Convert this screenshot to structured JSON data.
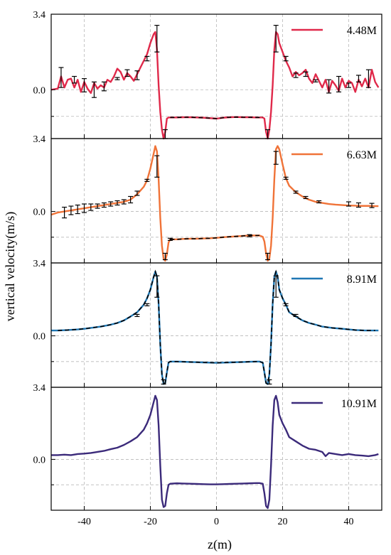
{
  "chart_data": {
    "type": "line",
    "xlabel": "z(m)",
    "ylabel": "vertical velocity(m/s)",
    "xlim": [
      -50,
      50
    ],
    "x_ticks": [
      -40,
      -20,
      0,
      20,
      40
    ],
    "x_tick_labels": [
      "-40",
      "-20",
      "0",
      "20",
      "40"
    ],
    "grid": true,
    "legend_position": "top-right",
    "panels": [
      {
        "series_name": "4.48M",
        "color": "#e0294a",
        "ylim": [
          -2.2,
          3.4
        ],
        "y_ticks": [
          0.0,
          3.4
        ],
        "y_tick_labels": [
          "0.0",
          "3.4"
        ],
        "has_errorbars": true,
        "x": [
          -50,
          -48,
          -47,
          -46,
          -45,
          -44,
          -43,
          -42,
          -41,
          -40,
          -39,
          -38,
          -37,
          -36,
          -35,
          -34,
          -33,
          -32,
          -31,
          -30,
          -29,
          -28,
          -27,
          -26,
          -25,
          -24,
          -23,
          -22,
          -21,
          -20,
          -19,
          -18.5,
          -18,
          -17.5,
          -17,
          -16.5,
          -16,
          -15.5,
          -15,
          -14.5,
          -14,
          -13,
          -12,
          -10,
          -8,
          -6,
          -4,
          -2,
          0,
          2,
          4,
          6,
          8,
          10,
          12,
          13,
          14,
          14.5,
          15,
          15.5,
          16,
          16.5,
          17,
          17.5,
          18,
          18.5,
          19,
          20,
          21,
          22,
          23,
          24,
          25,
          26,
          27,
          28,
          29,
          30,
          31,
          32,
          33,
          34,
          35,
          36,
          37,
          38,
          39,
          40,
          41,
          42,
          43,
          44,
          45,
          46,
          47,
          48,
          49
        ],
        "y": [
          0.0,
          0.05,
          0.6,
          0.1,
          0.45,
          0.5,
          0.1,
          0.45,
          -0.1,
          0.35,
          0.05,
          -0.15,
          0.3,
          0.05,
          0.2,
          0.1,
          0.45,
          0.35,
          0.6,
          0.95,
          0.8,
          0.45,
          0.75,
          0.6,
          0.4,
          0.7,
          1.0,
          1.3,
          1.6,
          2.1,
          2.5,
          2.6,
          1.8,
          0.2,
          -1.0,
          -1.8,
          -2.2,
          -1.9,
          -1.3,
          -1.25,
          -1.25,
          -1.25,
          -1.25,
          -1.24,
          -1.24,
          -1.25,
          -1.26,
          -1.28,
          -1.3,
          -1.26,
          -1.24,
          -1.23,
          -1.24,
          -1.24,
          -1.25,
          -1.25,
          -1.25,
          -1.3,
          -1.9,
          -2.2,
          -1.8,
          -1.0,
          0.2,
          1.8,
          2.6,
          2.5,
          2.1,
          1.7,
          1.3,
          1.0,
          0.6,
          0.8,
          0.65,
          0.75,
          0.9,
          0.5,
          0.3,
          0.7,
          0.4,
          0.1,
          0.45,
          -0.1,
          0.4,
          0.2,
          -0.05,
          0.5,
          0.1,
          0.4,
          0.3,
          -0.1,
          0.45,
          0.15,
          0.5,
          0.1,
          0.9,
          0.35,
          0.1
        ],
        "errorbars": [
          {
            "x": -47,
            "y": 0.55,
            "err": 0.45
          },
          {
            "x": -43,
            "y": 0.45,
            "err": 0.15
          },
          {
            "x": -40,
            "y": 0.2,
            "err": 0.3
          },
          {
            "x": -37,
            "y": 0.0,
            "err": 0.35
          },
          {
            "x": -34,
            "y": 0.15,
            "err": 0.2
          },
          {
            "x": -30,
            "y": 0.5,
            "err": 0.05
          },
          {
            "x": -27,
            "y": 0.75,
            "err": 0.15
          },
          {
            "x": -24,
            "y": 0.65,
            "err": 0.2
          },
          {
            "x": -21,
            "y": 1.4,
            "err": 0.1
          },
          {
            "x": -18,
            "y": 2.3,
            "err": 0.6
          },
          {
            "x": -15.5,
            "y": -2.0,
            "err": 0.2
          },
          {
            "x": 15.5,
            "y": -2.0,
            "err": 0.2
          },
          {
            "x": 18,
            "y": 2.3,
            "err": 0.6
          },
          {
            "x": 21,
            "y": 1.4,
            "err": 0.1
          },
          {
            "x": 24,
            "y": 0.65,
            "err": 0.1
          },
          {
            "x": 27,
            "y": 0.7,
            "err": 0.1
          },
          {
            "x": 30,
            "y": 0.4,
            "err": 0.05
          },
          {
            "x": 34,
            "y": 0.15,
            "err": 0.3
          },
          {
            "x": 37,
            "y": 0.25,
            "err": 0.35
          },
          {
            "x": 40,
            "y": 0.2,
            "err": 0.1
          },
          {
            "x": 43,
            "y": 0.5,
            "err": 0.15
          },
          {
            "x": 46,
            "y": 0.5,
            "err": 0.4
          }
        ],
        "dashed_range": [
          -14,
          14
        ]
      },
      {
        "series_name": "6.63M",
        "color": "#f07338",
        "ylim": [
          -2.4,
          3.4
        ],
        "y_ticks": [
          0.0,
          3.4
        ],
        "y_tick_labels": [
          "0.0",
          "3.4"
        ],
        "has_errorbars": true,
        "x": [
          -50,
          -48,
          -46,
          -44,
          -42,
          -40,
          -38,
          -36,
          -34,
          -32,
          -30,
          -28,
          -26,
          -24,
          -22,
          -21,
          -20,
          -19,
          -18.5,
          -18,
          -17.5,
          -17,
          -16.5,
          -16,
          -15.5,
          -15,
          -14.5,
          -14,
          -12,
          -10,
          -8,
          -6,
          -4,
          -2,
          0,
          2,
          4,
          6,
          8,
          10,
          12,
          13,
          14,
          14.5,
          15,
          15.5,
          16,
          16.5,
          17,
          17.5,
          18,
          18.5,
          19,
          20,
          21,
          22,
          24,
          26,
          28,
          30,
          32,
          34,
          36,
          38,
          40,
          42,
          44,
          46,
          48,
          49
        ],
        "y": [
          -0.15,
          -0.05,
          0.0,
          0.05,
          0.1,
          0.15,
          0.2,
          0.25,
          0.3,
          0.35,
          0.4,
          0.45,
          0.55,
          0.8,
          1.15,
          1.45,
          2.0,
          2.7,
          3.05,
          2.8,
          1.5,
          -0.3,
          -1.6,
          -2.2,
          -2.3,
          -2.0,
          -1.45,
          -1.3,
          -1.3,
          -1.28,
          -1.27,
          -1.27,
          -1.26,
          -1.25,
          -1.23,
          -1.2,
          -1.18,
          -1.16,
          -1.14,
          -1.12,
          -1.12,
          -1.12,
          -1.18,
          -1.4,
          -1.95,
          -2.3,
          -2.2,
          -1.6,
          -0.3,
          1.5,
          2.9,
          3.05,
          2.9,
          2.2,
          1.55,
          1.2,
          0.9,
          0.7,
          0.55,
          0.45,
          0.4,
          0.35,
          0.32,
          0.3,
          0.28,
          0.27,
          0.26,
          0.26,
          0.25,
          0.25
        ],
        "errorbars": [
          {
            "x": -46,
            "y": -0.05,
            "err": 0.25
          },
          {
            "x": -44,
            "y": 0.05,
            "err": 0.2
          },
          {
            "x": -42,
            "y": 0.1,
            "err": 0.2
          },
          {
            "x": -40,
            "y": 0.15,
            "err": 0.2
          },
          {
            "x": -38,
            "y": 0.2,
            "err": 0.15
          },
          {
            "x": -36,
            "y": 0.25,
            "err": 0.1
          },
          {
            "x": -34,
            "y": 0.3,
            "err": 0.1
          },
          {
            "x": -32,
            "y": 0.35,
            "err": 0.1
          },
          {
            "x": -30,
            "y": 0.4,
            "err": 0.1
          },
          {
            "x": -28,
            "y": 0.45,
            "err": 0.1
          },
          {
            "x": -26,
            "y": 0.55,
            "err": 0.15
          },
          {
            "x": -24,
            "y": 0.85,
            "err": 0.1
          },
          {
            "x": -21,
            "y": 1.45,
            "err": 0.05
          },
          {
            "x": -18,
            "y": 2.1,
            "err": 0.5
          },
          {
            "x": -15.5,
            "y": -2.1,
            "err": 0.15
          },
          {
            "x": -14,
            "y": -1.3,
            "err": 0.05
          },
          {
            "x": 10,
            "y": -1.13,
            "err": 0.05
          },
          {
            "x": 15.5,
            "y": -2.1,
            "err": 0.15
          },
          {
            "x": 18,
            "y": 2.5,
            "err": 0.3
          },
          {
            "x": 21,
            "y": 1.55,
            "err": 0.05
          },
          {
            "x": 24,
            "y": 0.9,
            "err": 0.05
          },
          {
            "x": 27,
            "y": 0.65,
            "err": 0.05
          },
          {
            "x": 31,
            "y": 0.45,
            "err": 0.05
          },
          {
            "x": 40,
            "y": 0.35,
            "err": 0.1
          },
          {
            "x": 43,
            "y": 0.3,
            "err": 0.1
          },
          {
            "x": 47,
            "y": 0.28,
            "err": 0.1
          }
        ],
        "dashed_range": [
          -14,
          13
        ]
      },
      {
        "series_name": "8.91M",
        "color": "#1f77b4",
        "ylim": [
          -2.4,
          3.4
        ],
        "y_ticks": [
          0.0,
          3.4
        ],
        "y_tick_labels": [
          "0.0",
          "3.4"
        ],
        "has_errorbars": true,
        "x": [
          -50,
          -48,
          -45,
          -42,
          -40,
          -38,
          -35,
          -32,
          -30,
          -28,
          -26,
          -24,
          -22,
          -21,
          -20,
          -19,
          -18.5,
          -18,
          -17.5,
          -17,
          -16.5,
          -16,
          -15.5,
          -15,
          -14.5,
          -14,
          -12,
          -10,
          -8,
          -6,
          -4,
          -2,
          0,
          2,
          4,
          6,
          8,
          10,
          12,
          13,
          14,
          14.5,
          15,
          15.5,
          16,
          16.5,
          17,
          17.5,
          18,
          18.5,
          19,
          20,
          21,
          22,
          24,
          26,
          28,
          30,
          32,
          35,
          38,
          40,
          42,
          45,
          48,
          49
        ],
        "y": [
          0.25,
          0.25,
          0.27,
          0.3,
          0.33,
          0.37,
          0.43,
          0.52,
          0.6,
          0.72,
          0.9,
          1.1,
          1.45,
          1.75,
          2.15,
          2.75,
          3.0,
          2.75,
          1.5,
          -0.4,
          -1.8,
          -2.25,
          -2.2,
          -1.7,
          -1.25,
          -1.2,
          -1.2,
          -1.21,
          -1.22,
          -1.23,
          -1.24,
          -1.25,
          -1.26,
          -1.25,
          -1.24,
          -1.23,
          -1.22,
          -1.21,
          -1.2,
          -1.2,
          -1.25,
          -1.7,
          -2.2,
          -2.25,
          -1.8,
          -0.4,
          1.5,
          2.75,
          3.0,
          2.75,
          2.15,
          1.75,
          1.45,
          1.1,
          0.9,
          0.72,
          0.6,
          0.52,
          0.43,
          0.37,
          0.33,
          0.3,
          0.27,
          0.25,
          0.25,
          0.25
        ],
        "errorbars": [
          {
            "x": -24,
            "y": 0.95,
            "err": 0.05
          },
          {
            "x": -21,
            "y": 1.45,
            "err": 0.05
          },
          {
            "x": -18,
            "y": 2.3,
            "err": 0.5
          },
          {
            "x": -16,
            "y": -2.15,
            "err": 0.1
          },
          {
            "x": 16,
            "y": -2.15,
            "err": 0.1
          },
          {
            "x": 18,
            "y": 2.3,
            "err": 0.5
          },
          {
            "x": 21,
            "y": 1.45,
            "err": 0.05
          },
          {
            "x": 24,
            "y": 0.95,
            "err": 0.05
          }
        ],
        "dashed_range": [
          -48,
          48
        ]
      },
      {
        "series_name": "10.91M",
        "color": "#3b2a7a",
        "ylim": [
          -2.4,
          3.4
        ],
        "y_ticks": [
          0.0,
          3.4
        ],
        "y_tick_labels": [
          "0.0",
          "3.4"
        ],
        "has_errorbars": false,
        "x": [
          -50,
          -48,
          -46,
          -44,
          -42,
          -40,
          -38,
          -36,
          -34,
          -32,
          -30,
          -28,
          -26,
          -24,
          -22,
          -21,
          -20,
          -19,
          -18.5,
          -18,
          -17.5,
          -17,
          -16.5,
          -16,
          -15.5,
          -15,
          -14.5,
          -14,
          -12,
          -10,
          -8,
          -6,
          -4,
          -2,
          0,
          2,
          4,
          6,
          8,
          10,
          12,
          13,
          14,
          14.5,
          15,
          15.5,
          16,
          16.5,
          17,
          17.5,
          18,
          18.5,
          19,
          20,
          21,
          22,
          24,
          26,
          28,
          30,
          32,
          33,
          34,
          36,
          38,
          40,
          42,
          44,
          46,
          48,
          49
        ],
        "y": [
          0.2,
          0.2,
          0.22,
          0.2,
          0.25,
          0.27,
          0.3,
          0.35,
          0.4,
          0.48,
          0.55,
          0.68,
          0.85,
          1.05,
          1.4,
          1.7,
          2.1,
          2.7,
          3.0,
          2.8,
          1.6,
          -0.3,
          -1.9,
          -2.25,
          -2.2,
          -1.6,
          -1.2,
          -1.15,
          -1.13,
          -1.14,
          -1.15,
          -1.16,
          -1.17,
          -1.18,
          -1.18,
          -1.17,
          -1.16,
          -1.15,
          -1.14,
          -1.13,
          -1.12,
          -1.12,
          -1.15,
          -1.6,
          -2.2,
          -2.3,
          -1.9,
          -0.3,
          1.6,
          2.8,
          3.0,
          2.7,
          2.1,
          1.7,
          1.4,
          1.05,
          0.85,
          0.65,
          0.5,
          0.45,
          0.35,
          0.15,
          0.3,
          0.25,
          0.2,
          0.25,
          0.2,
          0.18,
          0.15,
          0.2,
          0.25
        ]
      }
    ]
  }
}
